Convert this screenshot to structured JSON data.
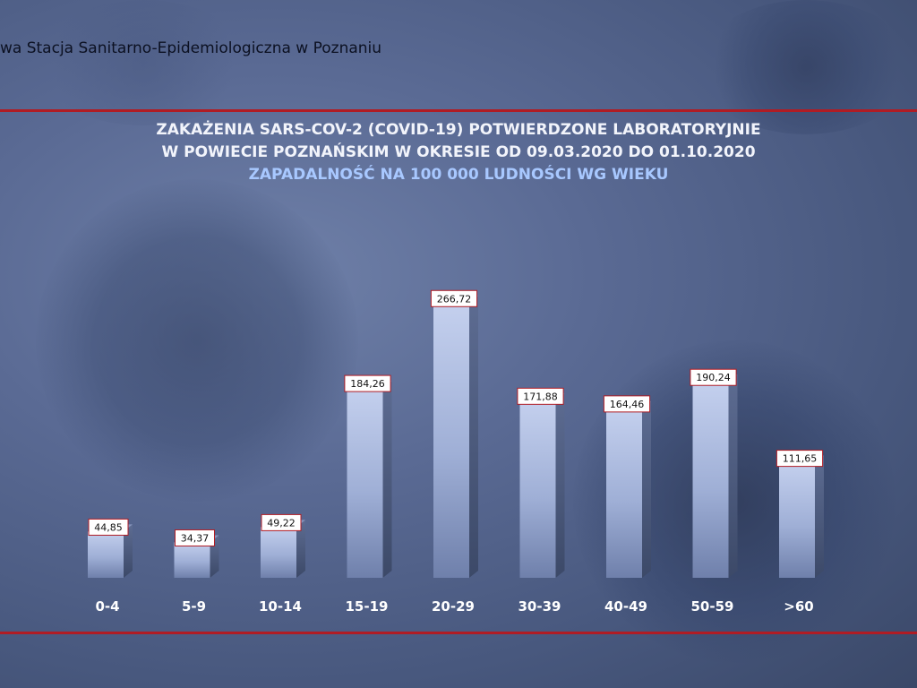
{
  "header": {
    "institution_text": "wa Stacja Sanitarno-Epidemiologiczna w Poznaniu"
  },
  "colors": {
    "accent_line": "#b01c24",
    "title_text": "#f2f4fb",
    "subtitle_text": "#a8c8ff",
    "bar_front": "#a9b7dc",
    "label_border": "#b01c24"
  },
  "chart_data": {
    "type": "bar",
    "title_line1": "ZAKAŻENIA SARS-COV-2 (COVID-19) POTWIERDZONE LABORATORYJNIE",
    "title_line2": "W POWIECIE POZNAŃSKIM W OKRESIE OD 09.03.2020 DO 01.10.2020",
    "subtitle": "ZAPADALNOŚĆ NA 100 000 LUDNOŚCI WG WIEKU",
    "categories": [
      "0-4",
      "5-9",
      "10-14",
      "15-19",
      "20-29",
      "30-39",
      "40-49",
      "50-59",
      ">60"
    ],
    "values": [
      44.85,
      34.37,
      49.22,
      184.26,
      266.72,
      171.88,
      164.46,
      190.24,
      111.65
    ],
    "value_labels": [
      "44,85",
      "34,37",
      "49,22",
      "184,26",
      "266,72",
      "171,88",
      "164,46",
      "190,24",
      "111,65"
    ],
    "ylim": [
      0,
      300
    ],
    "grid": false,
    "legend": "none"
  }
}
